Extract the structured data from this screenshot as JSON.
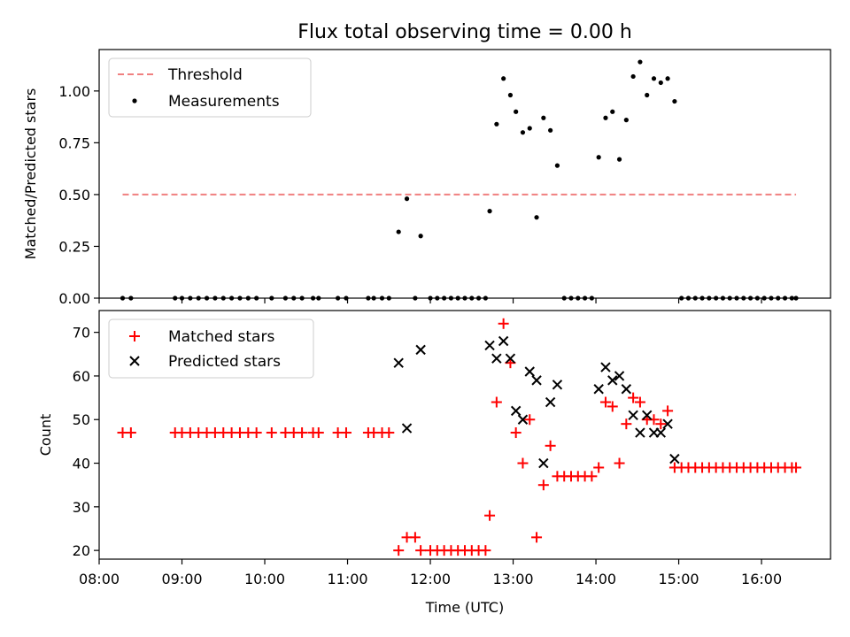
{
  "chart_data": [
    {
      "type": "scatter",
      "title": "Flux total observing time = 0.00 h",
      "xlabel": "",
      "ylabel": "Matched/Predicted stars",
      "xlim": [
        "08:00",
        "16:50"
      ],
      "ylim": [
        0,
        1.2
      ],
      "yticks": [
        "0.00",
        "0.25",
        "0.50",
        "0.75",
        "1.00"
      ],
      "legend": {
        "placement": "top-left",
        "entries": [
          "Threshold",
          "Measurements"
        ]
      },
      "threshold": {
        "name": "Threshold",
        "y": 0.5,
        "x": [
          "08:17",
          "16:25"
        ],
        "color": "#f08080"
      },
      "series": [
        {
          "name": "Measurements",
          "color": "#000000",
          "points": [
            [
              "08:17",
              0
            ],
            [
              "08:23",
              0
            ],
            [
              "08:55",
              0
            ],
            [
              "09:00",
              0
            ],
            [
              "09:06",
              0
            ],
            [
              "09:12",
              0
            ],
            [
              "09:18",
              0
            ],
            [
              "09:24",
              0
            ],
            [
              "09:30",
              0
            ],
            [
              "09:36",
              0
            ],
            [
              "09:42",
              0
            ],
            [
              "09:48",
              0
            ],
            [
              "09:54",
              0
            ],
            [
              "10:05",
              0
            ],
            [
              "10:15",
              0
            ],
            [
              "10:21",
              0
            ],
            [
              "10:27",
              0
            ],
            [
              "10:35",
              0
            ],
            [
              "10:39",
              0
            ],
            [
              "10:53",
              0
            ],
            [
              "10:59",
              0
            ],
            [
              "11:15",
              0
            ],
            [
              "11:19",
              0
            ],
            [
              "11:25",
              0
            ],
            [
              "11:30",
              0
            ],
            [
              "11:37",
              0.32
            ],
            [
              "11:43",
              0.48
            ],
            [
              "11:49",
              0
            ],
            [
              "11:53",
              0.3
            ],
            [
              "12:00",
              0
            ],
            [
              "12:05",
              0
            ],
            [
              "12:10",
              0
            ],
            [
              "12:15",
              0
            ],
            [
              "12:20",
              0
            ],
            [
              "12:25",
              0
            ],
            [
              "12:30",
              0
            ],
            [
              "12:35",
              0
            ],
            [
              "12:40",
              0
            ],
            [
              "12:43",
              0.42
            ],
            [
              "12:48",
              0.84
            ],
            [
              "12:53",
              1.06
            ],
            [
              "12:58",
              0.98
            ],
            [
              "13:02",
              0.9
            ],
            [
              "13:07",
              0.8
            ],
            [
              "13:12",
              0.82
            ],
            [
              "13:17",
              0.39
            ],
            [
              "13:22",
              0.87
            ],
            [
              "13:27",
              0.81
            ],
            [
              "13:32",
              0.64
            ],
            [
              "13:37",
              0
            ],
            [
              "13:42",
              0
            ],
            [
              "13:47",
              0
            ],
            [
              "13:52",
              0
            ],
            [
              "13:57",
              0
            ],
            [
              "14:02",
              0.68
            ],
            [
              "14:07",
              0.87
            ],
            [
              "14:12",
              0.9
            ],
            [
              "14:17",
              0.67
            ],
            [
              "14:22",
              0.86
            ],
            [
              "14:27",
              1.07
            ],
            [
              "14:32",
              1.14
            ],
            [
              "14:37",
              0.98
            ],
            [
              "14:42",
              1.06
            ],
            [
              "14:47",
              1.04
            ],
            [
              "14:52",
              1.06
            ],
            [
              "14:57",
              0.95
            ],
            [
              "15:02",
              0
            ],
            [
              "15:07",
              0
            ],
            [
              "15:12",
              0
            ],
            [
              "15:17",
              0
            ],
            [
              "15:22",
              0
            ],
            [
              "15:27",
              0
            ],
            [
              "15:32",
              0
            ],
            [
              "15:37",
              0
            ],
            [
              "15:42",
              0
            ],
            [
              "15:47",
              0
            ],
            [
              "15:52",
              0
            ],
            [
              "15:57",
              0
            ],
            [
              "16:02",
              0
            ],
            [
              "16:07",
              0
            ],
            [
              "16:12",
              0
            ],
            [
              "16:17",
              0
            ],
            [
              "16:22",
              0
            ],
            [
              "16:25",
              0
            ]
          ]
        }
      ]
    },
    {
      "type": "scatter",
      "title": "",
      "xlabel": "Time (UTC)",
      "ylabel": "Count",
      "xlim": [
        "08:00",
        "16:50"
      ],
      "ylim": [
        18,
        75
      ],
      "xticks": [
        "08:00",
        "09:00",
        "10:00",
        "11:00",
        "12:00",
        "13:00",
        "14:00",
        "15:00",
        "16:00"
      ],
      "yticks": [
        "20",
        "30",
        "40",
        "50",
        "60",
        "70"
      ],
      "legend": {
        "placement": "top-left",
        "entries": [
          "Matched stars",
          "Predicted stars"
        ]
      },
      "series": [
        {
          "name": "Matched stars",
          "marker": "plus",
          "color": "#ff0000",
          "points": [
            [
              "08:17",
              47
            ],
            [
              "08:23",
              47
            ],
            [
              "08:55",
              47
            ],
            [
              "09:00",
              47
            ],
            [
              "09:06",
              47
            ],
            [
              "09:12",
              47
            ],
            [
              "09:18",
              47
            ],
            [
              "09:24",
              47
            ],
            [
              "09:30",
              47
            ],
            [
              "09:36",
              47
            ],
            [
              "09:42",
              47
            ],
            [
              "09:48",
              47
            ],
            [
              "09:54",
              47
            ],
            [
              "10:05",
              47
            ],
            [
              "10:15",
              47
            ],
            [
              "10:21",
              47
            ],
            [
              "10:27",
              47
            ],
            [
              "10:35",
              47
            ],
            [
              "10:39",
              47
            ],
            [
              "10:53",
              47
            ],
            [
              "10:59",
              47
            ],
            [
              "11:15",
              47
            ],
            [
              "11:19",
              47
            ],
            [
              "11:25",
              47
            ],
            [
              "11:30",
              47
            ],
            [
              "11:37",
              20
            ],
            [
              "11:43",
              23
            ],
            [
              "11:49",
              23
            ],
            [
              "11:53",
              20
            ],
            [
              "12:00",
              20
            ],
            [
              "12:05",
              20
            ],
            [
              "12:10",
              20
            ],
            [
              "12:15",
              20
            ],
            [
              "12:20",
              20
            ],
            [
              "12:25",
              20
            ],
            [
              "12:30",
              20
            ],
            [
              "12:35",
              20
            ],
            [
              "12:40",
              20
            ],
            [
              "12:43",
              28
            ],
            [
              "12:48",
              54
            ],
            [
              "12:53",
              72
            ],
            [
              "12:58",
              63
            ],
            [
              "13:02",
              47
            ],
            [
              "13:07",
              40
            ],
            [
              "13:12",
              50
            ],
            [
              "13:17",
              23
            ],
            [
              "13:22",
              35
            ],
            [
              "13:27",
              44
            ],
            [
              "13:32",
              37
            ],
            [
              "13:37",
              37
            ],
            [
              "13:42",
              37
            ],
            [
              "13:47",
              37
            ],
            [
              "13:52",
              37
            ],
            [
              "13:57",
              37
            ],
            [
              "14:02",
              39
            ],
            [
              "14:07",
              54
            ],
            [
              "14:12",
              53
            ],
            [
              "14:17",
              40
            ],
            [
              "14:22",
              49
            ],
            [
              "14:27",
              55
            ],
            [
              "14:32",
              54
            ],
            [
              "14:37",
              50
            ],
            [
              "14:42",
              50
            ],
            [
              "14:47",
              49
            ],
            [
              "14:52",
              52
            ],
            [
              "14:57",
              39
            ],
            [
              "15:02",
              39
            ],
            [
              "15:07",
              39
            ],
            [
              "15:12",
              39
            ],
            [
              "15:17",
              39
            ],
            [
              "15:22",
              39
            ],
            [
              "15:27",
              39
            ],
            [
              "15:32",
              39
            ],
            [
              "15:37",
              39
            ],
            [
              "15:42",
              39
            ],
            [
              "15:47",
              39
            ],
            [
              "15:52",
              39
            ],
            [
              "15:57",
              39
            ],
            [
              "16:02",
              39
            ],
            [
              "16:07",
              39
            ],
            [
              "16:12",
              39
            ],
            [
              "16:17",
              39
            ],
            [
              "16:22",
              39
            ],
            [
              "16:25",
              39
            ]
          ]
        },
        {
          "name": "Predicted stars",
          "marker": "x",
          "color": "#000000",
          "points": [
            [
              "11:37",
              63
            ],
            [
              "11:43",
              48
            ],
            [
              "11:53",
              66
            ],
            [
              "12:43",
              67
            ],
            [
              "12:48",
              64
            ],
            [
              "12:53",
              68
            ],
            [
              "12:58",
              64
            ],
            [
              "13:02",
              52
            ],
            [
              "13:07",
              50
            ],
            [
              "13:12",
              61
            ],
            [
              "13:17",
              59
            ],
            [
              "13:22",
              40
            ],
            [
              "13:27",
              54
            ],
            [
              "13:32",
              58
            ],
            [
              "14:02",
              57
            ],
            [
              "14:07",
              62
            ],
            [
              "14:12",
              59
            ],
            [
              "14:17",
              60
            ],
            [
              "14:22",
              57
            ],
            [
              "14:27",
              51
            ],
            [
              "14:32",
              47
            ],
            [
              "14:37",
              51
            ],
            [
              "14:42",
              47
            ],
            [
              "14:47",
              47
            ],
            [
              "14:52",
              49
            ],
            [
              "14:57",
              41
            ]
          ]
        }
      ]
    }
  ]
}
